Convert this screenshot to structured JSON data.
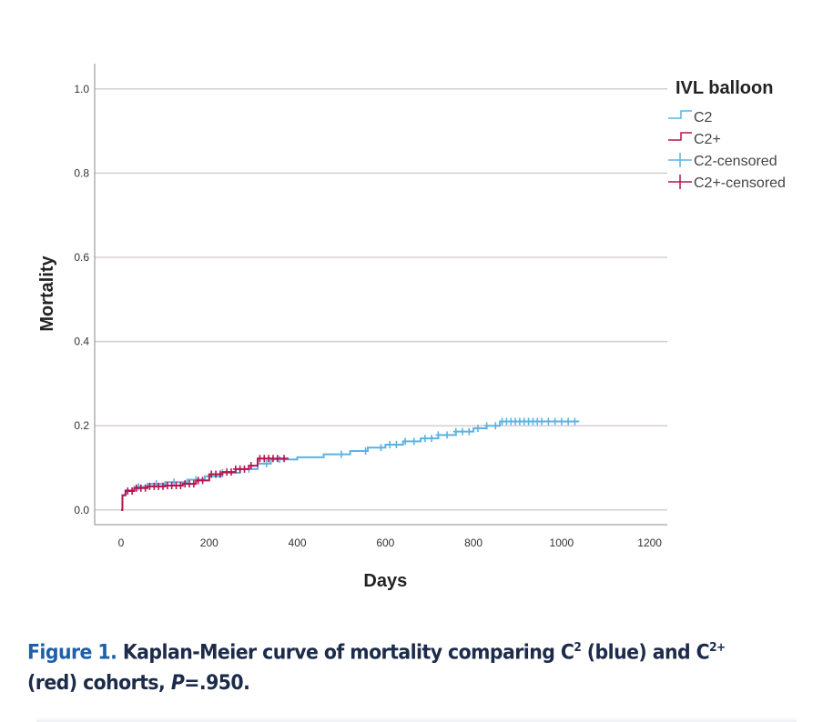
{
  "chart_data": {
    "type": "line",
    "subtype": "kaplan-meier step",
    "xlabel": "Days",
    "ylabel": "Mortality",
    "xlim": [
      -60,
      1240
    ],
    "ylim": [
      -0.035,
      1.06
    ],
    "xticks": [
      0,
      200,
      400,
      600,
      800,
      1000,
      1200
    ],
    "yticks": [
      "0.0",
      "0.2",
      "0.4",
      "0.6",
      "0.8",
      "1.0"
    ],
    "grid": "horizontal",
    "legend": {
      "title": "IVL balloon",
      "placement": "top-right",
      "entries": [
        {
          "label": "C2",
          "kind": "step",
          "color": "#5bb3e3"
        },
        {
          "label": "C2+",
          "kind": "step",
          "color": "#b5154f"
        },
        {
          "label": "C2-censored",
          "kind": "censor",
          "color": "#5bb3e3"
        },
        {
          "label": "C2+-censored",
          "kind": "censor",
          "color": "#b5154f"
        }
      ]
    },
    "series": [
      {
        "name": "C2",
        "color": "#5bb3e3",
        "x": [
          0,
          3,
          10,
          30,
          60,
          100,
          150,
          190,
          230,
          270,
          310,
          340,
          400,
          460,
          520,
          560,
          600,
          640,
          680,
          720,
          760,
          800,
          830,
          860,
          1040
        ],
        "y": [
          0,
          0.035,
          0.047,
          0.055,
          0.062,
          0.066,
          0.072,
          0.08,
          0.088,
          0.097,
          0.11,
          0.12,
          0.125,
          0.132,
          0.14,
          0.148,
          0.155,
          0.163,
          0.17,
          0.178,
          0.186,
          0.194,
          0.2,
          0.21,
          0.21
        ],
        "censored": [
          40,
          80,
          120,
          170,
          230,
          290,
          330,
          360,
          500,
          555,
          590,
          610,
          625,
          645,
          665,
          690,
          705,
          720,
          740,
          760,
          775,
          790,
          810,
          830,
          850,
          865,
          875,
          885,
          895,
          905,
          915,
          925,
          935,
          945,
          955,
          970,
          985,
          1000,
          1015,
          1030
        ]
      },
      {
        "name": "C2+",
        "color": "#b5154f",
        "x": [
          0,
          3,
          10,
          30,
          60,
          100,
          140,
          170,
          200,
          230,
          260,
          290,
          310,
          380
        ],
        "y": [
          0,
          0.035,
          0.045,
          0.052,
          0.056,
          0.058,
          0.062,
          0.07,
          0.085,
          0.09,
          0.097,
          0.105,
          0.122,
          0.122
        ],
        "censored": [
          15,
          25,
          35,
          45,
          55,
          65,
          75,
          85,
          95,
          105,
          115,
          125,
          135,
          145,
          155,
          165,
          175,
          185,
          205,
          215,
          225,
          240,
          250,
          260,
          270,
          280,
          295,
          315,
          325,
          335,
          345,
          355,
          370
        ]
      }
    ]
  },
  "caption": {
    "label": "Figure 1.",
    "text1": " Kaplan-Meier curve of mortality comparing C",
    "sup1": "2",
    "text2": " (blue) and C",
    "sup2": "2+",
    "text3": " (red) cohorts, ",
    "p_label": "P",
    "p_value": "=.950."
  }
}
